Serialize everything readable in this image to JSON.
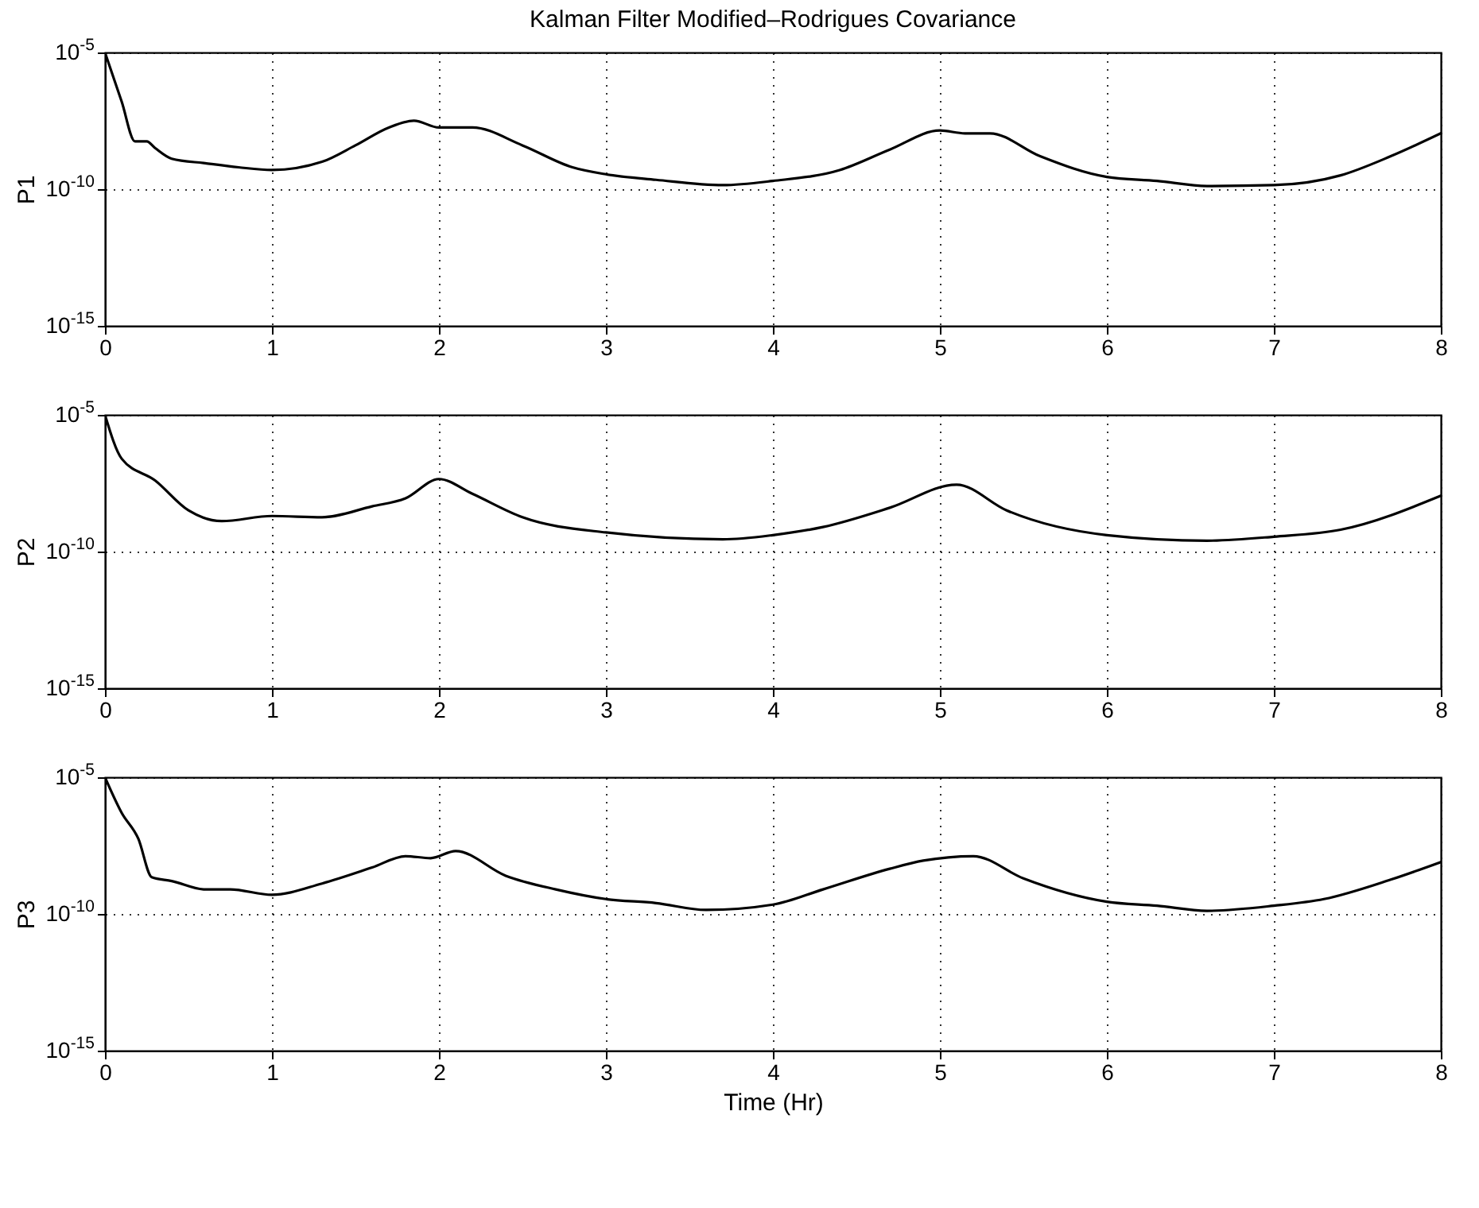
{
  "chart_data": [
    {
      "type": "line",
      "title": "Kalman Filter Modified–Rodrigues Covariance",
      "ylabel": "P1",
      "log": "y",
      "grid": true,
      "xlim": [
        0,
        8
      ],
      "xticks": [
        0,
        1,
        2,
        3,
        4,
        5,
        6,
        7,
        8
      ],
      "ylim": [
        1e-15,
        1e-05
      ],
      "yticks": [
        {
          "value": 1e-15,
          "label": "10$^{-15}$"
        },
        {
          "value": 1e-10,
          "label": "10$^{-10}$"
        },
        {
          "value": 1e-05,
          "label": "10$^{-5}$"
        }
      ],
      "x": [
        0,
        0.1,
        0.18,
        0.25,
        0.3,
        0.4,
        0.6,
        0.8,
        1.0,
        1.3,
        1.5,
        1.7,
        1.85,
        2.0,
        2.2,
        2.5,
        2.8,
        3.0,
        3.3,
        3.7,
        4.0,
        4.4,
        4.7,
        5.0,
        5.15,
        5.3,
        5.6,
        6.0,
        6.3,
        6.6,
        7.0,
        7.4,
        7.7,
        8.0
      ],
      "series": [
        {
          "color": "#000000",
          "values": [
            1e-05,
            1.6e-07,
            5.6e-09,
            5.6e-09,
            3.2e-09,
            1.3e-09,
            8.9e-10,
            6.3e-10,
            5e-10,
            1e-09,
            4e-09,
            1.8e-08,
            3.2e-08,
            1.8e-08,
            1.8e-08,
            4e-09,
            6.3e-10,
            3.5e-10,
            2.2e-10,
            1.4e-10,
            2e-10,
            5e-10,
            2.8e-09,
            1.4e-08,
            1.1e-08,
            1.1e-08,
            1.6e-09,
            2.8e-10,
            2e-10,
            1.3e-10,
            1.4e-10,
            3.2e-10,
            1.6e-09,
            1.1e-08
          ]
        }
      ]
    },
    {
      "type": "line",
      "ylabel": "P2",
      "log": "y",
      "grid": true,
      "xlim": [
        0,
        8
      ],
      "xticks": [
        0,
        1,
        2,
        3,
        4,
        5,
        6,
        7,
        8
      ],
      "ylim": [
        1e-15,
        1e-05
      ],
      "yticks": [
        {
          "value": 1e-15,
          "label": "10$^{-15}$"
        },
        {
          "value": 1e-10,
          "label": "10$^{-10}$"
        },
        {
          "value": 1e-05,
          "label": "10$^{-5}$"
        }
      ],
      "x": [
        0,
        0.1,
        0.3,
        0.5,
        0.7,
        1.0,
        1.3,
        1.6,
        1.8,
        2.0,
        2.2,
        2.5,
        3.0,
        3.7,
        4.0,
        4.3,
        4.7,
        5.1,
        5.4,
        6.0,
        6.6,
        7.0,
        7.4,
        8.0
      ],
      "series": [
        {
          "color": "#000000",
          "values": [
            1e-05,
            2.5e-07,
            4e-08,
            3.2e-09,
            1.3e-09,
            2e-09,
            1.8e-09,
            4.5e-09,
            8.9e-09,
            4.5e-08,
            1.3e-08,
            1.8e-09,
            5e-10,
            2.8e-10,
            4e-10,
            7.9e-10,
            4e-09,
            2.8e-08,
            3.2e-09,
            4e-10,
            2.5e-10,
            3.5e-10,
            6.3e-10,
            1.1e-08
          ]
        }
      ]
    },
    {
      "type": "line",
      "ylabel": "P3",
      "xlabel": "Time (Hr)",
      "log": "y",
      "grid": true,
      "xlim": [
        0,
        8
      ],
      "xticks": [
        0,
        1,
        2,
        3,
        4,
        5,
        6,
        7,
        8
      ],
      "ylim": [
        1e-15,
        1e-05
      ],
      "yticks": [
        {
          "value": 1e-15,
          "label": "10$^{-15}$"
        },
        {
          "value": 1e-10,
          "label": "10$^{-10}$"
        },
        {
          "value": 1e-05,
          "label": "10$^{-5}$"
        }
      ],
      "x": [
        0,
        0.1,
        0.2,
        0.28,
        0.4,
        0.6,
        0.75,
        1.0,
        1.3,
        1.6,
        1.8,
        1.95,
        2.1,
        2.4,
        2.7,
        3.0,
        3.3,
        3.6,
        4.0,
        4.3,
        4.7,
        4.9,
        5.2,
        5.5,
        6.0,
        6.3,
        6.6,
        7.0,
        7.3,
        7.7,
        8.0
      ],
      "series": [
        {
          "color": "#000000",
          "values": [
            1e-05,
            5e-07,
            5.6e-08,
            2.2e-09,
            1.6e-09,
            7.9e-10,
            7.9e-10,
            5e-10,
            1.3e-09,
            5e-09,
            1.3e-08,
            1.1e-08,
            2e-08,
            2.5e-09,
            7.9e-10,
            3.5e-10,
            2.5e-10,
            1.4e-10,
            2.2e-10,
            7.9e-10,
            4.5e-09,
            8.9e-09,
            1.3e-08,
            2e-09,
            2.8e-10,
            2e-10,
            1.3e-10,
            2e-10,
            3.5e-10,
            1.8e-09,
            7.9e-09
          ]
        }
      ]
    }
  ]
}
